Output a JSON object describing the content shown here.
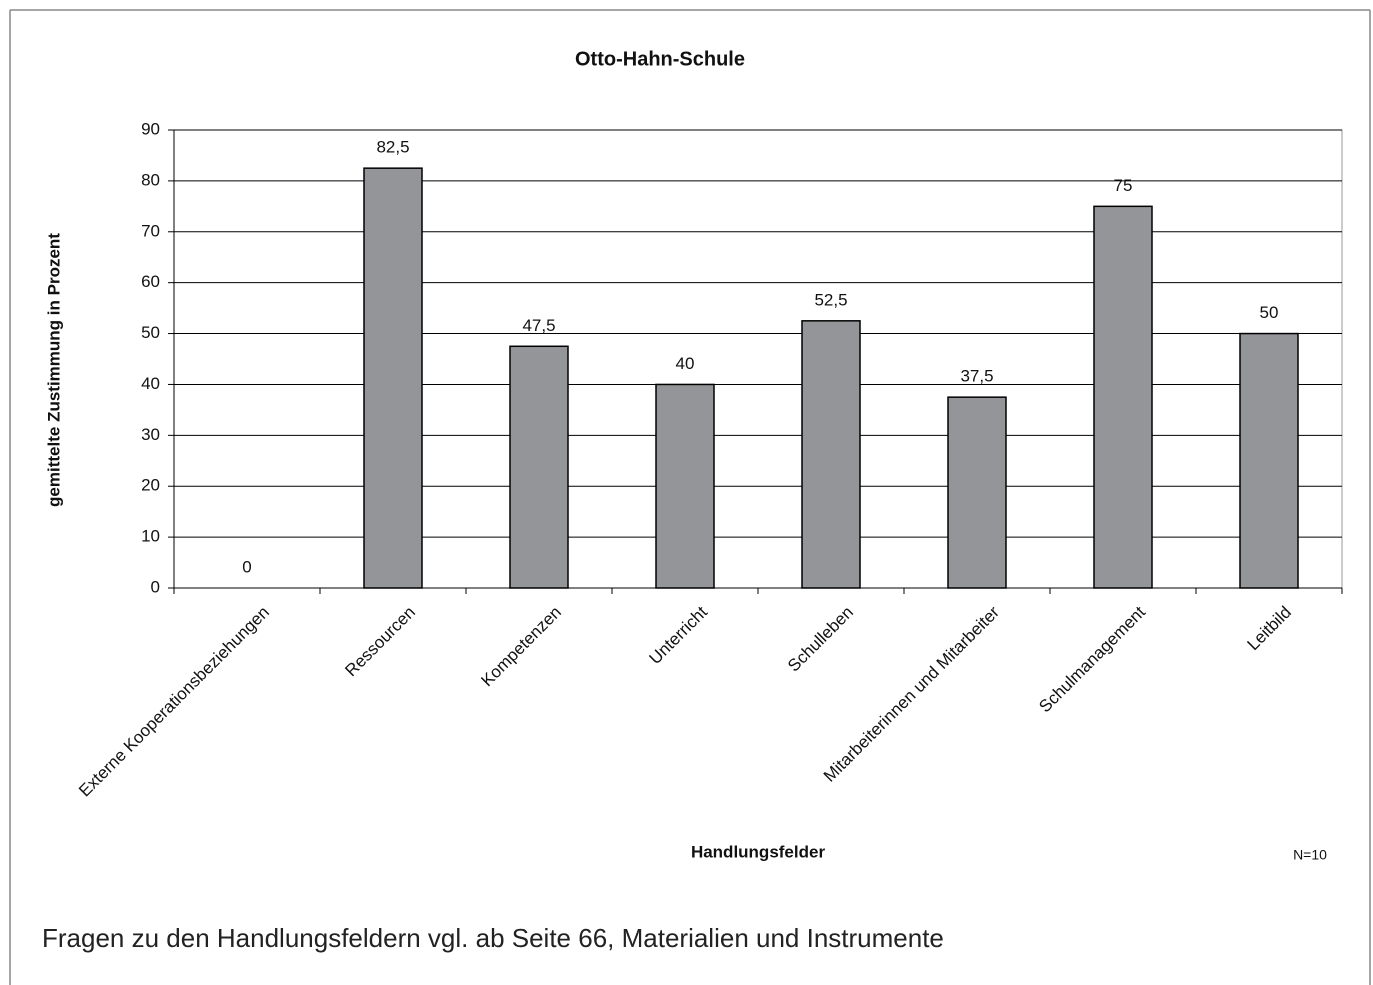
{
  "chart_data": {
    "type": "bar",
    "title": "Otto-Hahn-Schule",
    "categories": [
      "Externe Kooperationsbeziehungen",
      "Ressourcen",
      "Kompetenzen",
      "Unterricht",
      "Schulleben",
      "Mitarbeiterinnen und Mitarbeiter",
      "Schulmanagement",
      "Leitbild"
    ],
    "values": [
      0,
      82.5,
      47.5,
      40,
      52.5,
      37.5,
      75,
      50
    ],
    "value_labels": [
      "0",
      "82,5",
      "47,5",
      "40",
      "52,5",
      "37,5",
      "75",
      "50"
    ],
    "color": "#939598",
    "ylim": [
      0,
      90
    ],
    "yticks": [
      0,
      10,
      20,
      30,
      40,
      50,
      60,
      70,
      80,
      90
    ],
    "grid": true,
    "x_label": "Handlungsfelder",
    "y_label": "gemittelte Zustimmung in Prozent",
    "annotation": "N=10",
    "caption": "Fragen zu den Handlungsfeldern vgl. ab Seite 66, Materialien und Instrumente"
  }
}
